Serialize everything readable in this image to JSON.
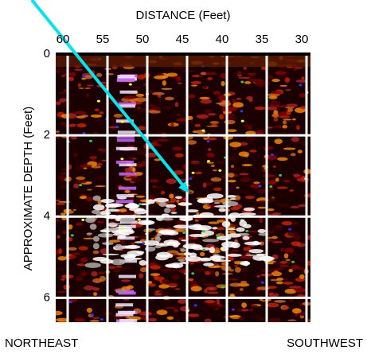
{
  "chart_data": {
    "type": "image",
    "title": "DISTANCE (Feet)",
    "y_label": "APPROXIMATE DEPTH (Feet)",
    "annotations": [
      "NORTHEAST",
      "SOUTHWEST"
    ],
    "xlim": [
      61.5,
      29.5
    ],
    "xticks": [
      60,
      55,
      50,
      45,
      40,
      35,
      30
    ],
    "ylim": [
      0,
      6.6
    ],
    "yticks": [
      0,
      2,
      4,
      6
    ],
    "grid": true,
    "grid_color": "#ffffff"
  }
}
